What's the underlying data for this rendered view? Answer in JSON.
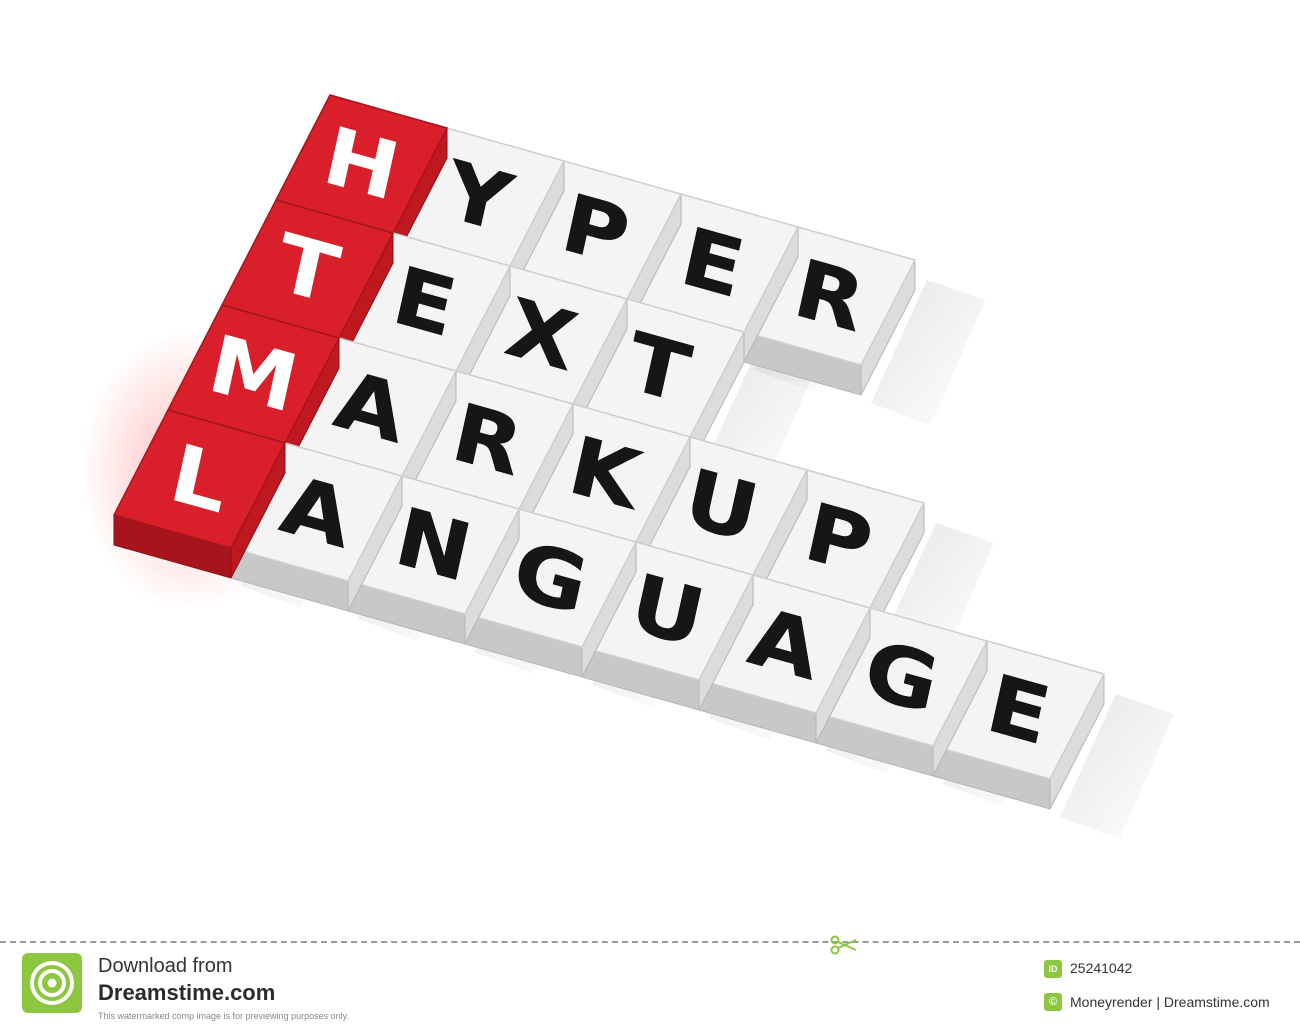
{
  "scene": {
    "acronym": [
      "H",
      "T",
      "M",
      "L"
    ],
    "words": [
      [
        "Y",
        "P",
        "E",
        "R"
      ],
      [
        "E",
        "X",
        "T"
      ],
      [
        "A",
        "R",
        "K",
        "U",
        "P"
      ],
      [
        "A",
        "N",
        "G",
        "U",
        "A",
        "G",
        "E"
      ]
    ],
    "colors": {
      "red_cube_top": "#d9202a",
      "red_cube_side": "#a8141c",
      "white_cube_top": "#f4f4f4",
      "white_cube_side": "#c8c8c8",
      "letter_dark": "#161616",
      "letter_light": "#ffffff"
    }
  },
  "footer": {
    "logo_icon": "dreamstime-spiral-icon",
    "download_line1": "Download from",
    "download_line2": "Dreamstime.com",
    "note": "This watermarked comp image is for previewing purposes only.",
    "id_badge": "ID",
    "image_id": "25241042",
    "copyright_badge": "©",
    "credit": "Moneyrender | Dreamstime.com",
    "accent_color": "#8dc63f"
  }
}
